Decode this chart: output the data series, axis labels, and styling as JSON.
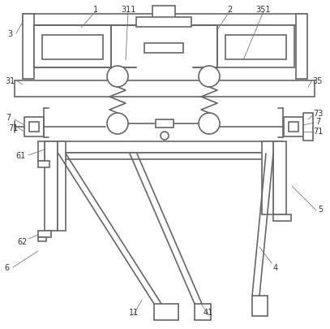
{
  "bg_color": "#ffffff",
  "line_color": "#666666",
  "lw": 1.2,
  "label_fontsize": 7,
  "label_color": "#333333"
}
